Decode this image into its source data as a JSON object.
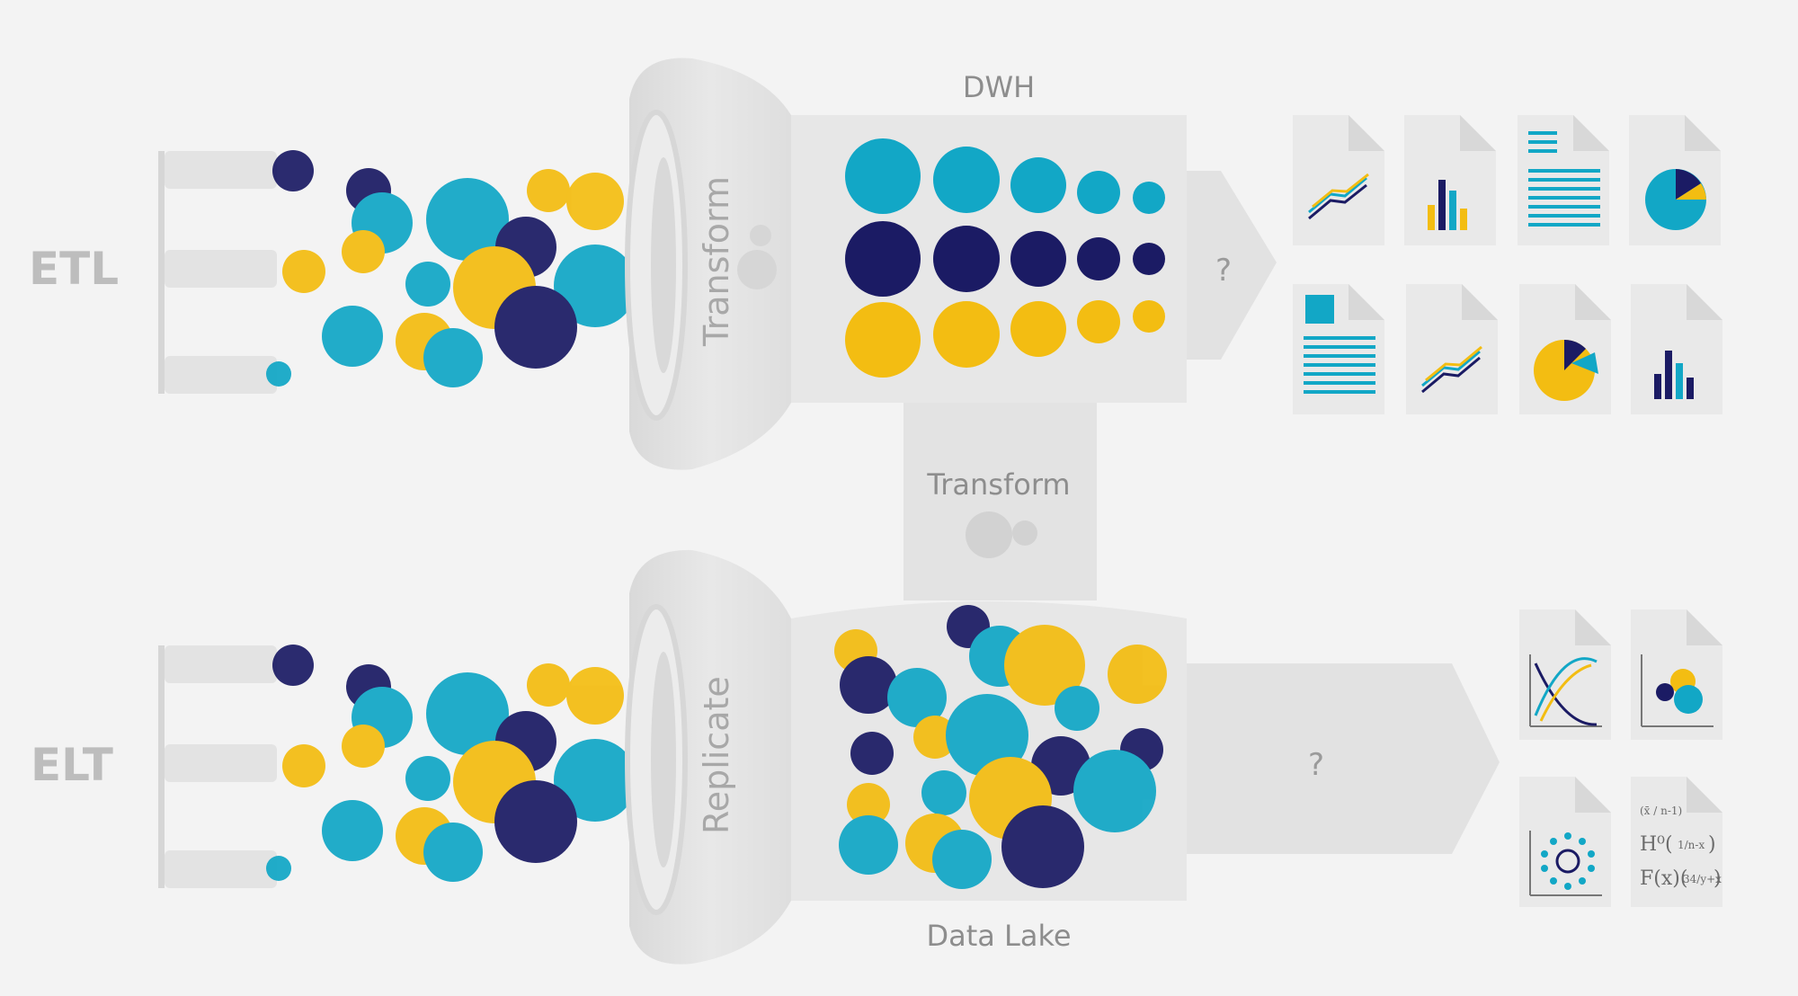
{
  "labels": {
    "etl": "ETL",
    "elt": "ELT",
    "transform_funnel": "Transform",
    "replicate_funnel": "Replicate",
    "transform_bridge": "Transform",
    "dwh": "DWH",
    "data_lake": "Data Lake",
    "question_top": "?",
    "question_bottom": "?"
  },
  "formulas": {
    "line1_small": "(x̄ / n-1)",
    "line2_main": "H⁰(",
    "line2_frac": "1/n-x",
    "line2_close": ")",
    "line3_main": "F(x)(",
    "line3_frac": "34/y+x",
    "line3_close": ")"
  },
  "colors": {
    "background": "#f3f3f3",
    "navy": "#1b1b64",
    "teal": "#12a7c6",
    "yellow": "#f3bd12",
    "container": "#e6e6e6",
    "container_dark": "#dcdcdc",
    "doc": "#e9e9e9",
    "label_gray": "#bdbdbd"
  },
  "icons": {
    "etl_outputs": [
      "line-chart-icon",
      "bar-chart-icon",
      "text-document-icon",
      "pie-chart-icon",
      "text-image-document-icon",
      "line-chart-icon",
      "pie-chart-icon",
      "bar-chart-icon"
    ],
    "elt_outputs": [
      "curve-chart-icon",
      "scatter-chart-icon",
      "radial-chart-icon",
      "formula-document-icon"
    ],
    "gears": [
      "gear-icon"
    ]
  }
}
